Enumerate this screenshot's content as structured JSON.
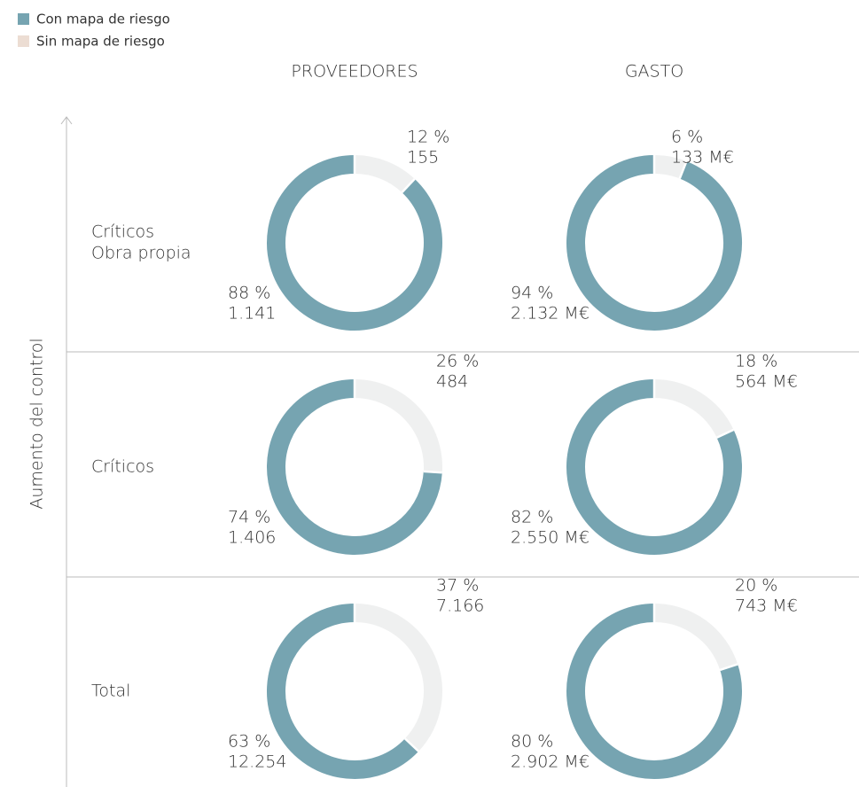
{
  "legend": [
    {
      "name": "Con mapa de riesgo",
      "color": "#76a4b1"
    },
    {
      "name": "Sin mapa de riesgo",
      "color": "#ecddd3"
    }
  ],
  "columns": [
    "PROVEEDORES",
    "GASTO"
  ],
  "rows": [
    [
      "Críticos",
      "Obra propia"
    ],
    [
      "Críticos"
    ],
    [
      "Total"
    ]
  ],
  "y_label": "Aumento del control",
  "chart_data": [
    {
      "type": "pie",
      "donut": true,
      "values": [
        88,
        12
      ],
      "value_labels": [
        "88 %",
        "12 %"
      ],
      "amount_labels": [
        "1.141",
        "155"
      ],
      "colors": [
        "#76a4b1",
        "#eff0f0"
      ]
    },
    {
      "type": "pie",
      "donut": true,
      "values": [
        94,
        6
      ],
      "value_labels": [
        "94 %",
        "6 %"
      ],
      "amount_labels": [
        "2.132 M€",
        "133 M€"
      ],
      "colors": [
        "#76a4b1",
        "#eff0f0"
      ]
    },
    {
      "type": "pie",
      "donut": true,
      "values": [
        74,
        26
      ],
      "value_labels": [
        "74 %",
        "26 %"
      ],
      "amount_labels": [
        "1.406",
        "484"
      ],
      "colors": [
        "#76a4b1",
        "#eff0f0"
      ]
    },
    {
      "type": "pie",
      "donut": true,
      "values": [
        82,
        18
      ],
      "value_labels": [
        "82 %",
        "18 %"
      ],
      "amount_labels": [
        "2.550 M€",
        "564 M€"
      ],
      "colors": [
        "#76a4b1",
        "#eff0f0"
      ]
    },
    {
      "type": "pie",
      "donut": true,
      "values": [
        63,
        37
      ],
      "value_labels": [
        "63 %",
        "37 %"
      ],
      "amount_labels": [
        "12.254",
        "7.166"
      ],
      "colors": [
        "#76a4b1",
        "#eff0f0"
      ]
    },
    {
      "type": "pie",
      "donut": true,
      "values": [
        80,
        20
      ],
      "value_labels": [
        "80 %",
        "20 %"
      ],
      "amount_labels": [
        "2.902 M€",
        "743 M€"
      ],
      "colors": [
        "#76a4b1",
        "#eff0f0"
      ]
    }
  ]
}
